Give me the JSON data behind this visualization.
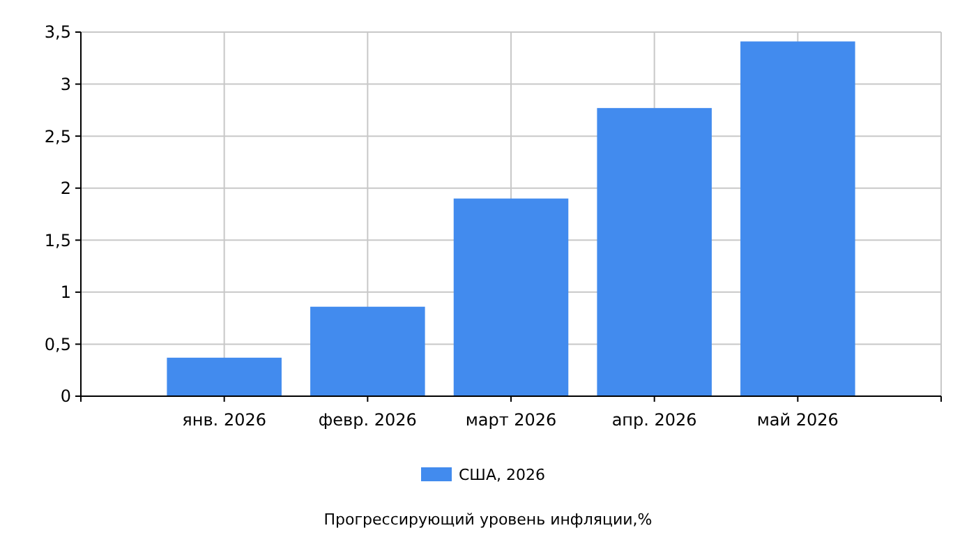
{
  "chart_data": {
    "type": "bar",
    "categories": [
      "янв. 2026",
      "февр. 2026",
      "март 2026",
      "апр. 2026",
      "май 2026"
    ],
    "series": [
      {
        "name": "США, 2026",
        "color": "#428bee",
        "values": [
          0.37,
          0.86,
          1.9,
          2.77,
          3.41
        ]
      }
    ],
    "ylim": [
      0,
      3.5
    ],
    "yticks": [
      0,
      {
        "value": 0.5,
        "label": "0,5"
      },
      1,
      {
        "value": 1.5,
        "label": "1,5"
      },
      2,
      {
        "value": 2.5,
        "label": "2,5"
      },
      3,
      {
        "value": 3.5,
        "label": "3,5"
      }
    ],
    "grid": true,
    "legend": "bottom",
    "annotations": [
      "Прогрессирующий уровень инфляции,%"
    ]
  }
}
